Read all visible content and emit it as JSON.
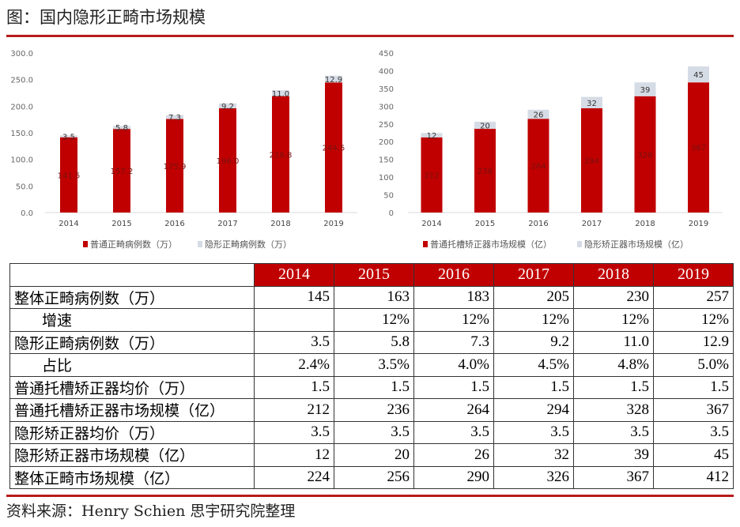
{
  "title": "图：国内隐形正畸市场规模",
  "colors": {
    "primary": "#c00000",
    "secondary": "#d6dce5",
    "accent_line": "#b71c1c"
  },
  "chart_data": [
    {
      "type": "bar",
      "stacked": true,
      "categories": [
        "2014",
        "2015",
        "2016",
        "2017",
        "2018",
        "2019"
      ],
      "ylim": [
        0,
        300
      ],
      "yticks": [
        "0.0",
        "50.0",
        "100.0",
        "150.0",
        "200.0",
        "250.0",
        "300.0"
      ],
      "series": [
        {
          "name": "普通正畸病例数（万）",
          "values": [
            141.5,
            157.2,
            175.9,
            196.0,
            218.8,
            244.5
          ],
          "labels": [
            "141.5",
            "157.2",
            "175.9",
            "196.0",
            "218.8",
            "244.5"
          ]
        },
        {
          "name": "隐形正畸病例数（万）",
          "values": [
            3.5,
            5.8,
            7.3,
            9.2,
            11.0,
            12.9
          ],
          "labels": [
            "3.5",
            "5.8",
            "7.3",
            "9.2",
            "11.0",
            "12.9"
          ]
        }
      ]
    },
    {
      "type": "bar",
      "stacked": true,
      "categories": [
        "2014",
        "2015",
        "2016",
        "2017",
        "2018",
        "2019"
      ],
      "ylim": [
        0,
        450
      ],
      "yticks": [
        "0",
        "50",
        "100",
        "150",
        "200",
        "250",
        "300",
        "350",
        "400",
        "450"
      ],
      "series": [
        {
          "name": "普通托槽矫正器市场规模（亿）",
          "values": [
            212,
            236,
            264,
            294,
            328,
            367
          ],
          "labels": [
            "212",
            "236",
            "264",
            "294",
            "328",
            "367"
          ]
        },
        {
          "name": "隐形矫正器市场规模（亿）",
          "values": [
            12,
            20,
            26,
            32,
            39,
            45
          ],
          "labels": [
            "12",
            "20",
            "26",
            "32",
            "39",
            "45"
          ]
        }
      ]
    }
  ],
  "table": {
    "years": [
      "2014",
      "2015",
      "2016",
      "2017",
      "2018",
      "2019"
    ],
    "rows": [
      {
        "label": "整体正畸病例数（万）",
        "sub": false,
        "values": [
          "145",
          "163",
          "183",
          "205",
          "230",
          "257"
        ]
      },
      {
        "label": "增速",
        "sub": true,
        "values": [
          "",
          "12%",
          "12%",
          "12%",
          "12%",
          "12%"
        ]
      },
      {
        "label": "隐形正畸病例数（万）",
        "sub": false,
        "values": [
          "3.5",
          "5.8",
          "7.3",
          "9.2",
          "11.0",
          "12.9"
        ]
      },
      {
        "label": "占比",
        "sub": true,
        "values": [
          "2.4%",
          "3.5%",
          "4.0%",
          "4.5%",
          "4.8%",
          "5.0%"
        ]
      },
      {
        "label": "普通托槽矫正器均价（万）",
        "sub": false,
        "values": [
          "1.5",
          "1.5",
          "1.5",
          "1.5",
          "1.5",
          "1.5"
        ]
      },
      {
        "label": "普通托槽矫正器市场规模（亿）",
        "sub": false,
        "values": [
          "212",
          "236",
          "264",
          "294",
          "328",
          "367"
        ]
      },
      {
        "label": "隐形矫正器均价（万）",
        "sub": false,
        "values": [
          "3.5",
          "3.5",
          "3.5",
          "3.5",
          "3.5",
          "3.5"
        ]
      },
      {
        "label": "隐形矫正器市场规模（亿）",
        "sub": false,
        "values": [
          "12",
          "20",
          "26",
          "32",
          "39",
          "45"
        ]
      },
      {
        "label": "整体正畸市场规模（亿）",
        "sub": false,
        "values": [
          "224",
          "256",
          "290",
          "326",
          "367",
          "412"
        ]
      }
    ]
  },
  "source": "资料来源：Henry Schien  思宇研究院整理"
}
